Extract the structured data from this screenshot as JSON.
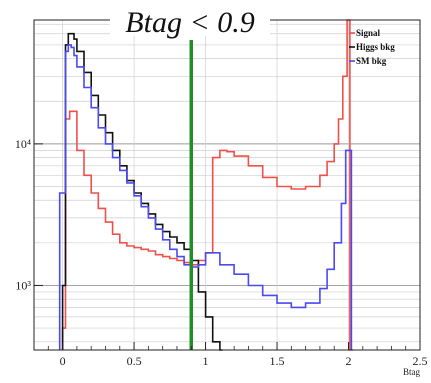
{
  "chart_data": {
    "type": "line",
    "title": "Btag < 0.9",
    "xlabel": "Btag",
    "ylabel": "",
    "xlim": [
      -0.2,
      2.5
    ],
    "ylog": true,
    "ylim": [
      350,
      75000
    ],
    "x_ticks": [
      0,
      0.5,
      1,
      1.5,
      2,
      2.5
    ],
    "x_tick_labels": [
      "0",
      "0.5",
      "1",
      "1.5",
      "2",
      "2.5"
    ],
    "y_ticks": [
      1000,
      10000
    ],
    "y_tick_labels": [
      "10³",
      "10⁴"
    ],
    "grid": true,
    "legend_position": "top-right",
    "cut_line": {
      "x": 0.9,
      "color": "#1f8f2a"
    },
    "series": [
      {
        "name": "Signal",
        "color": "#f0504a",
        "style": "step",
        "x": [
          0.0,
          0.02,
          0.05,
          0.1,
          0.15,
          0.2,
          0.25,
          0.3,
          0.35,
          0.4,
          0.45,
          0.5,
          0.55,
          0.6,
          0.65,
          0.7,
          0.75,
          0.8,
          0.85,
          0.9,
          0.95,
          1.0,
          1.05,
          1.1,
          1.15,
          1.2,
          1.3,
          1.4,
          1.5,
          1.6,
          1.7,
          1.8,
          1.85,
          1.9,
          1.93,
          1.96,
          1.99,
          2.0,
          2.01
        ],
        "values": [
          500,
          15000,
          17000,
          9000,
          6000,
          4500,
          3500,
          2800,
          2300,
          2000,
          1900,
          1850,
          1800,
          1750,
          1650,
          1600,
          1550,
          1500,
          1450,
          1400,
          1500,
          1700,
          8000,
          9000,
          8800,
          8200,
          7000,
          5800,
          5000,
          4800,
          5000,
          6000,
          7500,
          10000,
          15000,
          30000,
          75000,
          75000,
          350
        ]
      },
      {
        "name": "Higgs bkg",
        "color": "#111111",
        "style": "step",
        "x": [
          0.0,
          0.02,
          0.04,
          0.06,
          0.08,
          0.1,
          0.15,
          0.2,
          0.25,
          0.3,
          0.35,
          0.4,
          0.45,
          0.5,
          0.55,
          0.6,
          0.65,
          0.7,
          0.75,
          0.8,
          0.85,
          0.9,
          0.95,
          1.0,
          1.05,
          1.1
        ],
        "values": [
          1000,
          50000,
          60000,
          60000,
          55000,
          45000,
          32000,
          22000,
          16000,
          12000,
          9000,
          7000,
          5500,
          4500,
          3800,
          3200,
          2700,
          2400,
          2200,
          2000,
          1800,
          1500,
          900,
          600,
          400,
          350
        ]
      },
      {
        "name": "SM bkg",
        "color": "#4a4af0",
        "style": "step",
        "x": [
          -0.02,
          0.0,
          0.02,
          0.04,
          0.06,
          0.08,
          0.1,
          0.15,
          0.2,
          0.25,
          0.3,
          0.35,
          0.4,
          0.45,
          0.5,
          0.55,
          0.6,
          0.65,
          0.7,
          0.75,
          0.8,
          0.85,
          0.9,
          0.95,
          1.0,
          1.1,
          1.2,
          1.3,
          1.4,
          1.5,
          1.6,
          1.7,
          1.8,
          1.85,
          1.9,
          1.95,
          1.98,
          2.0
        ],
        "values": [
          4500,
          4500,
          45000,
          50000,
          48000,
          42000,
          35000,
          25000,
          18000,
          13000,
          10000,
          8000,
          6500,
          5300,
          4300,
          3600,
          3000,
          2500,
          2100,
          1800,
          1600,
          1400,
          1350,
          1400,
          1700,
          1400,
          1200,
          1000,
          850,
          750,
          700,
          750,
          950,
          1300,
          2000,
          3800,
          9000,
          9000
        ]
      }
    ]
  }
}
